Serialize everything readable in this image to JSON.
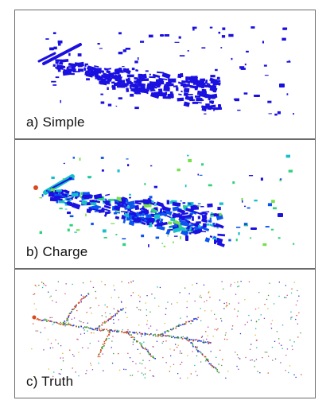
{
  "panels": [
    {
      "label": "a) Simple",
      "style": "simple"
    },
    {
      "label": "b) Charge",
      "style": "charge"
    },
    {
      "label": "c) Truth",
      "style": "truth"
    }
  ],
  "colors": {
    "simple": "#1a10e0",
    "charge": [
      "#1a10e0",
      "#0a55ee",
      "#17c0c8",
      "#2fd27a",
      "#74e04a"
    ],
    "truth": [
      "#d84a1e",
      "#3f9a3a",
      "#2a35d6",
      "#d8bb2a",
      "#9a3fbf",
      "#15b9b0",
      "#e0507a"
    ]
  }
}
